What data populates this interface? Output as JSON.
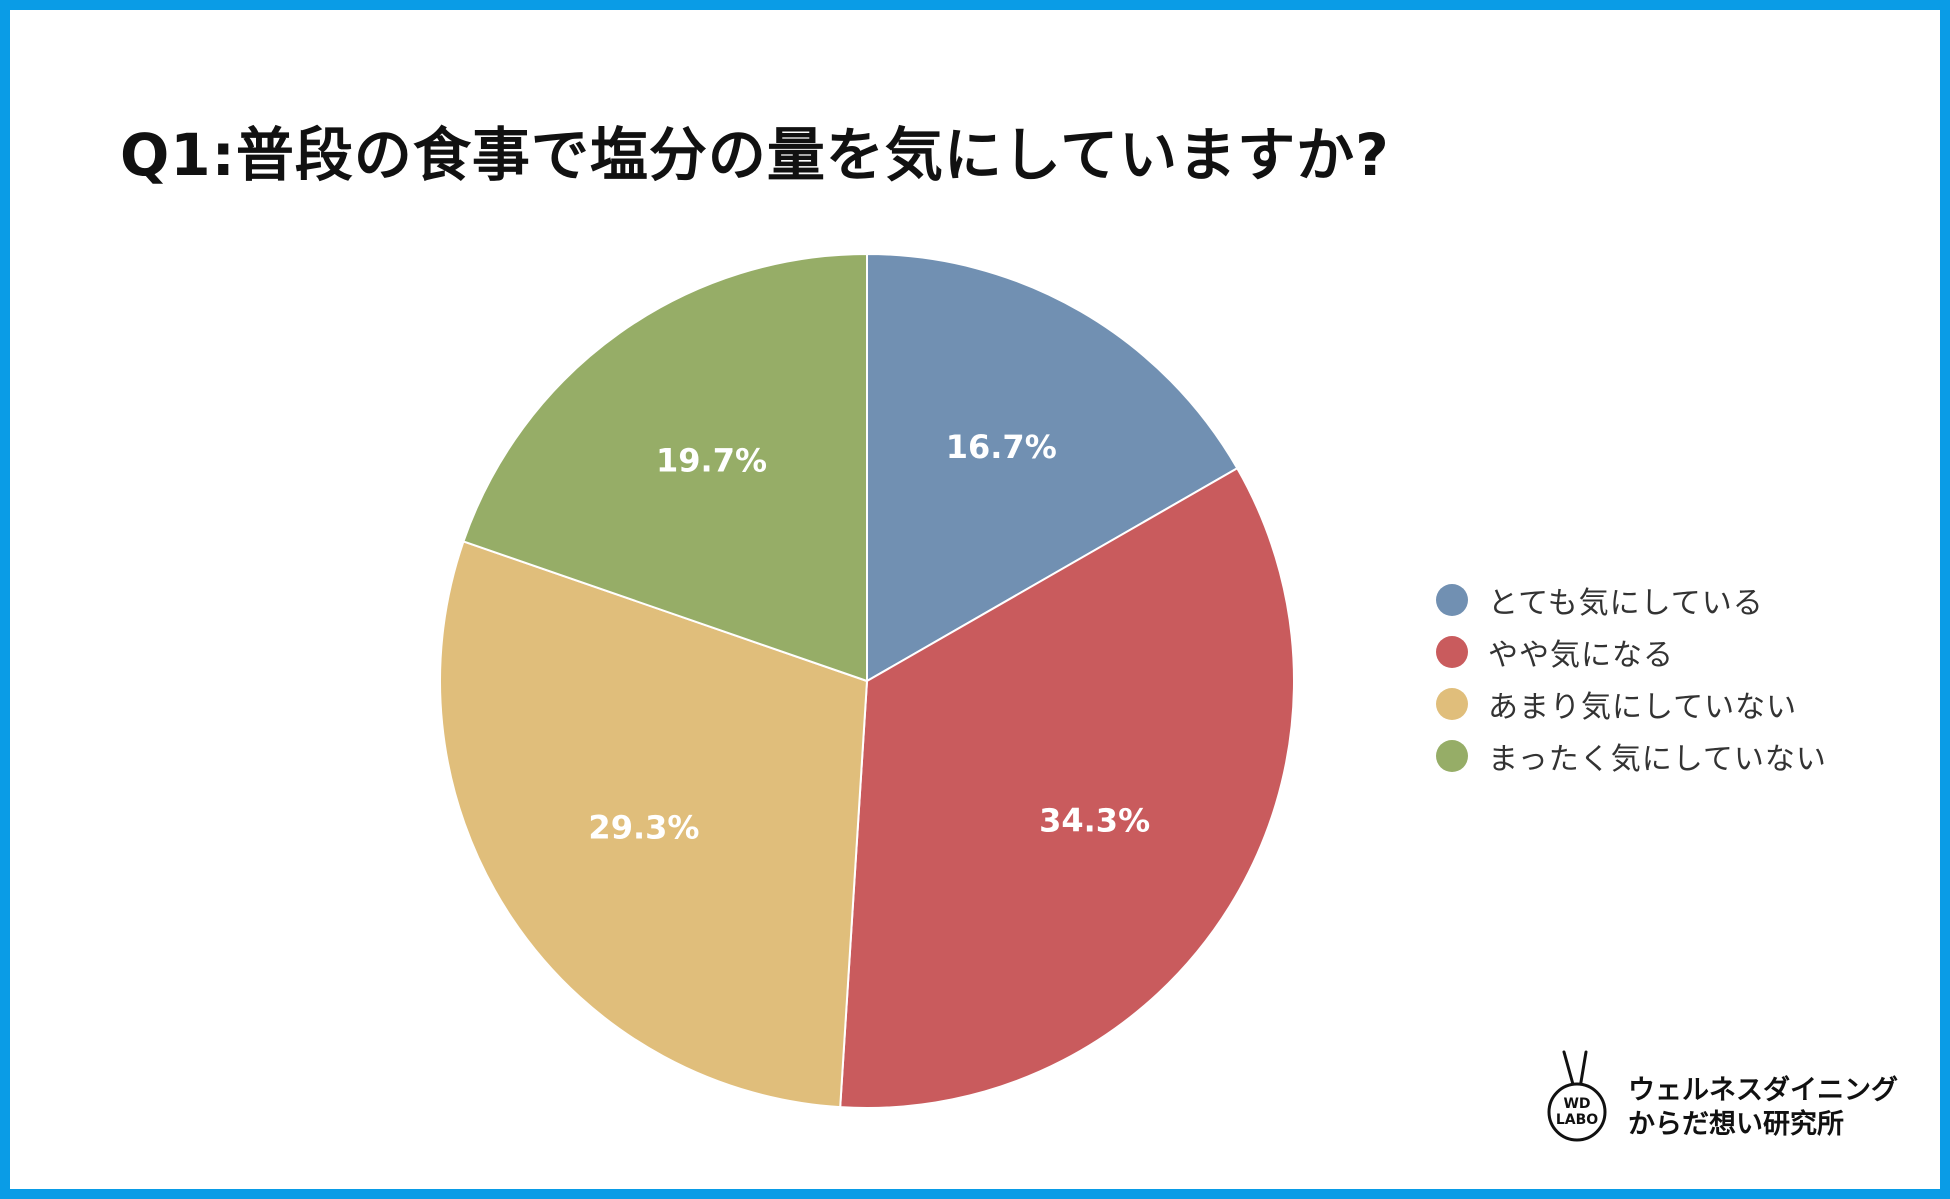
{
  "title": "Q1:普段の食事で塩分の量を気にしていますか?",
  "chart_data": {
    "type": "pie",
    "title": "Q1:普段の食事で塩分の量を気にしていますか?",
    "categories": [
      "とても気にしている",
      "やや気になる",
      "あまり気にしていない",
      "まったく気にしていない"
    ],
    "values": [
      16.7,
      34.3,
      29.3,
      19.7
    ],
    "labels": [
      "16.7%",
      "34.3%",
      "29.3%",
      "19.7%"
    ],
    "colors": [
      "#7190b2",
      "#c95b5d",
      "#e0be7b",
      "#96ad67"
    ],
    "start_angle": "12 o'clock",
    "direction": "clockwise",
    "legend_position": "right"
  },
  "logo": {
    "mark": "WD LABO",
    "line1": "ウェルネスダイニング",
    "line2": "からだ想い研究所"
  }
}
